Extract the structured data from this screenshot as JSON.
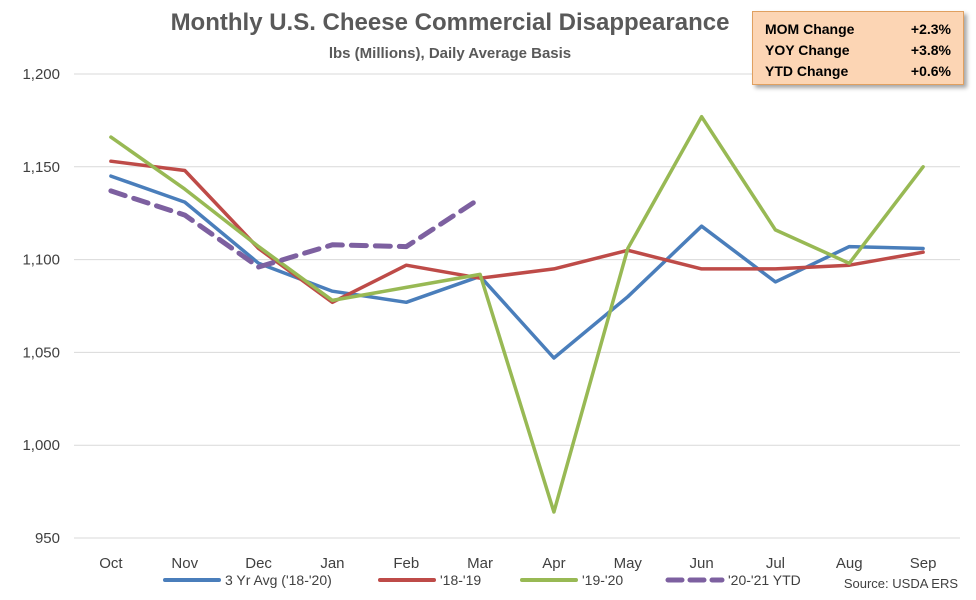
{
  "chart_data": {
    "type": "line",
    "title": "Monthly U.S. Cheese Commercial Disappearance",
    "subtitle": "lbs (Millions), Daily Average Basis",
    "categories": [
      "Oct",
      "Nov",
      "Dec",
      "Jan",
      "Feb",
      "Mar",
      "Apr",
      "May",
      "Jun",
      "Jul",
      "Aug",
      "Sep"
    ],
    "ylim": [
      950,
      1200
    ],
    "yticks": [
      950,
      1000,
      1050,
      1100,
      1150,
      1200
    ],
    "ytick_labels": [
      "950",
      "1,000",
      "1,050",
      "1,100",
      "1,150",
      "1,200"
    ],
    "grid": true,
    "legend_position": "bottom",
    "series": [
      {
        "name": "3 Yr Avg ('18-'20)",
        "color": "#4a7ebb",
        "dash": "solid",
        "values": [
          1145,
          1131,
          1098,
          1083,
          1077,
          1091,
          1047,
          1080,
          1118,
          1088,
          1107,
          1106
        ]
      },
      {
        "name": "'18-'19",
        "color": "#be4b48",
        "dash": "solid",
        "values": [
          1153,
          1148,
          1106,
          1077,
          1097,
          1090,
          1095,
          1105,
          1095,
          1095,
          1097,
          1104
        ]
      },
      {
        "name": "'19-'20",
        "color": "#98b954",
        "dash": "solid",
        "values": [
          1166,
          1138,
          1107,
          1078,
          1085,
          1092,
          964,
          1106,
          1177,
          1116,
          1098,
          1150
        ]
      },
      {
        "name": "'20-'21 YTD",
        "color": "#7d60a0",
        "dash": "dashed",
        "values": [
          1137,
          1124,
          1096,
          1108,
          1107,
          1133,
          null,
          null,
          null,
          null,
          null,
          null
        ]
      }
    ],
    "source": "Source: USDA ERS"
  },
  "stats_box": {
    "rows": [
      {
        "label": "MOM Change",
        "value": "+2.3%"
      },
      {
        "label": "YOY Change",
        "value": "+3.8%"
      },
      {
        "label": "YTD Change",
        "value": "+0.6%"
      }
    ]
  }
}
